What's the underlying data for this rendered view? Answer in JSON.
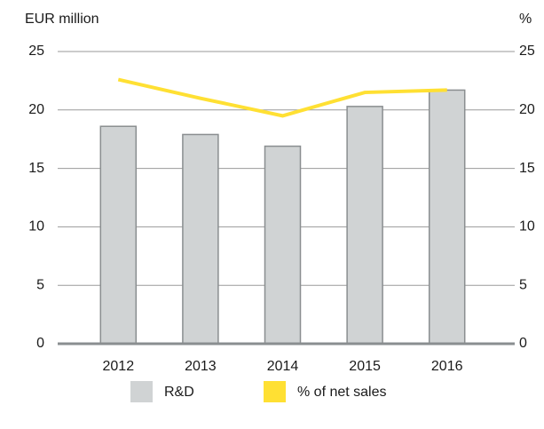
{
  "chart_data": {
    "type": "bar",
    "y_label": "EUR million",
    "y2_label": "%",
    "categories": [
      "2012",
      "2013",
      "2014",
      "2015",
      "2016"
    ],
    "series": [
      {
        "name": "R&D",
        "type": "bar",
        "color": "#d0d3d4",
        "values": [
          18.6,
          17.9,
          16.9,
          20.3,
          21.7
        ]
      },
      {
        "name": "% of net sales",
        "type": "line",
        "axis": "y2",
        "color": "#ffe033",
        "values": [
          22.6,
          21.0,
          19.5,
          21.5,
          21.7
        ]
      }
    ],
    "ylim": [
      0,
      25
    ],
    "yticks": [
      0,
      5,
      10,
      15,
      20,
      25
    ],
    "y2lim": [
      0,
      25
    ],
    "y2ticks": [
      0,
      5,
      10,
      15,
      20,
      25
    ],
    "grid": true,
    "legend": "bottom"
  }
}
